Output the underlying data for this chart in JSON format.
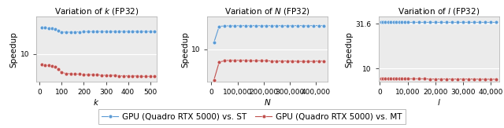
{
  "plot1": {
    "title": "Variation of $k$ (FP32)",
    "xlabel": "$k$",
    "ylabel": "Speedup",
    "blue_x": [
      10,
      25,
      40,
      55,
      70,
      85,
      100,
      120,
      140,
      160,
      180,
      200,
      220,
      240,
      260,
      280,
      300,
      320,
      340,
      360,
      380,
      400,
      420,
      440,
      460,
      480,
      500,
      520
    ],
    "blue_y": [
      31.5,
      31.0,
      30.5,
      30.0,
      29.2,
      27.5,
      26.0,
      25.5,
      25.7,
      25.9,
      26.0,
      26.1,
      26.2,
      26.2,
      26.3,
      26.3,
      26.3,
      26.4,
      26.3,
      26.4,
      26.3,
      26.4,
      26.3,
      26.4,
      26.3,
      26.4,
      26.3,
      26.4
    ],
    "red_x": [
      10,
      25,
      40,
      55,
      70,
      85,
      100,
      120,
      140,
      160,
      180,
      200,
      220,
      240,
      260,
      280,
      300,
      320,
      340,
      360,
      380,
      400,
      420,
      440,
      460,
      480,
      500,
      520
    ],
    "red_y": [
      6.3,
      6.2,
      6.1,
      6.0,
      5.7,
      5.2,
      4.5,
      4.3,
      4.3,
      4.2,
      4.2,
      4.1,
      4.1,
      4.1,
      4.1,
      4.0,
      4.0,
      4.0,
      4.0,
      3.9,
      3.9,
      3.9,
      3.9,
      3.9,
      3.8,
      3.8,
      3.8,
      3.8
    ],
    "xlim": [
      -15,
      530
    ],
    "xticks": [
      0,
      100,
      200,
      300,
      400,
      500
    ],
    "xticklabels": [
      "0",
      "100",
      "200",
      "300",
      "400",
      "500"
    ],
    "ylim": [
      3,
      50
    ],
    "yticks": [
      10
    ],
    "yticklabels": [
      "10"
    ],
    "use_log": true
  },
  "plot2": {
    "title": "Variation of $N$ (FP32)",
    "xlabel": "$N$",
    "ylabel": "Speedup",
    "blue_x": [
      10000,
      30000,
      50000,
      70000,
      90000,
      110000,
      130000,
      150000,
      170000,
      190000,
      210000,
      230000,
      250000,
      270000,
      290000,
      310000,
      330000,
      350000,
      370000,
      390000,
      410000,
      430000
    ],
    "blue_y": [
      14.0,
      31.0,
      31.5,
      31.8,
      31.9,
      32.0,
      32.0,
      32.0,
      32.0,
      32.0,
      32.0,
      32.0,
      32.0,
      32.0,
      32.0,
      32.0,
      32.1,
      32.1,
      32.1,
      32.1,
      32.2,
      32.2
    ],
    "red_x": [
      10000,
      30000,
      50000,
      70000,
      90000,
      110000,
      130000,
      150000,
      170000,
      190000,
      210000,
      230000,
      250000,
      270000,
      290000,
      310000,
      330000,
      350000,
      370000,
      390000,
      410000,
      430000
    ],
    "red_y": [
      2.2,
      5.3,
      5.7,
      5.8,
      5.8,
      5.8,
      5.8,
      5.7,
      5.7,
      5.7,
      5.7,
      5.6,
      5.6,
      5.6,
      5.6,
      5.6,
      5.5,
      5.5,
      5.5,
      5.5,
      5.6,
      5.6
    ],
    "xlim": [
      -15000,
      445000
    ],
    "xticks": [
      0,
      100000,
      200000,
      300000,
      400000
    ],
    "xticklabels": [
      "0",
      "100,000",
      "200,000",
      "300,000",
      "400,000"
    ],
    "ylim": [
      2,
      50
    ],
    "yticks": [
      10
    ],
    "yticklabels": [
      "10"
    ],
    "use_log": true
  },
  "plot3": {
    "title": "Variation of $l$ (FP32)",
    "xlabel": "$l$",
    "ylabel": "Speedup",
    "blue_x": [
      500,
      1000,
      2000,
      3000,
      4000,
      5000,
      6000,
      7000,
      8000,
      9000,
      10000,
      12000,
      14000,
      16000,
      18000,
      20000,
      22000,
      24000,
      26000,
      28000,
      30000,
      32000,
      34000,
      36000,
      38000,
      40000,
      42000
    ],
    "blue_y": [
      32.5,
      32.5,
      32.5,
      32.5,
      32.5,
      32.5,
      32.5,
      32.5,
      32.5,
      32.5,
      32.5,
      32.5,
      32.5,
      32.5,
      32.5,
      32.5,
      32.5,
      32.5,
      32.5,
      32.5,
      32.5,
      32.5,
      32.5,
      32.5,
      32.5,
      32.5,
      32.5
    ],
    "red_x": [
      500,
      1000,
      2000,
      3000,
      4000,
      5000,
      6000,
      7000,
      8000,
      9000,
      10000,
      12000,
      14000,
      16000,
      18000,
      20000,
      22000,
      24000,
      26000,
      28000,
      30000,
      32000,
      34000,
      36000,
      38000,
      40000,
      42000
    ],
    "red_y": [
      5.2,
      5.2,
      5.1,
      5.1,
      5.1,
      5.1,
      5.0,
      5.0,
      5.0,
      5.0,
      5.0,
      5.0,
      5.0,
      5.0,
      4.9,
      4.9,
      4.9,
      4.9,
      4.9,
      4.9,
      4.9,
      4.9,
      4.9,
      4.8,
      4.8,
      4.8,
      4.8
    ],
    "xlim": [
      -500,
      43000
    ],
    "xticks": [
      0,
      10000,
      20000,
      30000,
      40000
    ],
    "xticklabels": [
      "0",
      "10,000",
      "20,000",
      "30,000",
      "40,000"
    ],
    "ylim": [
      3.5,
      35
    ],
    "yticks": [
      10,
      31.6
    ],
    "yticklabels": [
      "10",
      "31.6"
    ],
    "use_log": false
  },
  "legend": {
    "blue_label": "GPU (Quadro RTX 5000) vs. ST",
    "red_label": "GPU (Quadro RTX 5000) vs. MT"
  },
  "blue_color": "#5B9BD5",
  "red_color": "#C0504D",
  "marker_size": 3.5,
  "linewidth": 0.8,
  "title_fontsize": 7.5,
  "label_fontsize": 7.5,
  "tick_fontsize": 6.5,
  "legend_fontsize": 7.5,
  "axes_facecolor": "#EBEBEB",
  "grid_color": "#FFFFFF",
  "spine_color": "#AAAAAA"
}
